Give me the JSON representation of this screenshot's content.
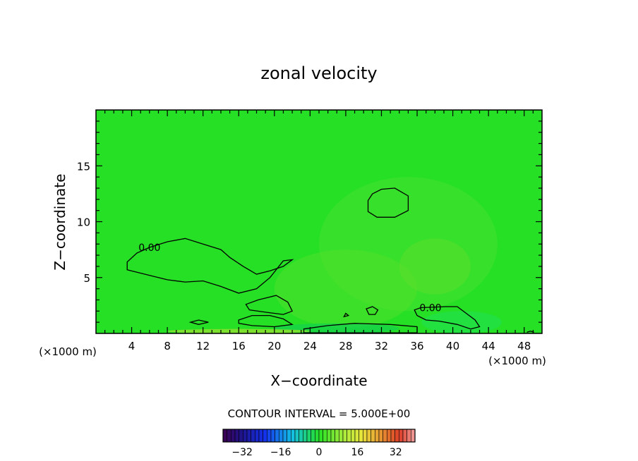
{
  "chart_data": {
    "type": "heatmap",
    "title": "zonal velocity",
    "xlabel": "X−coordinate",
    "ylabel": "Z−coordinate",
    "x_unit_left": "(×1000 m)",
    "x_unit_right": "(×1000 m)",
    "xlim": [
      0,
      50
    ],
    "ylim": [
      0,
      20
    ],
    "x_ticks": [
      4,
      8,
      12,
      16,
      20,
      24,
      28,
      32,
      36,
      40,
      44,
      48
    ],
    "y_ticks": [
      5,
      10,
      15
    ],
    "field_range": [
      -40,
      40
    ],
    "background_value": 0,
    "field_color": "#26e026",
    "contour_interval_text": "CONTOUR INTERVAL = 5.000E+00",
    "contour_labels": [
      {
        "text": "0.00",
        "x": 6.0,
        "z": 7.7
      },
      {
        "text": "0.00",
        "x": 37.5,
        "z": 2.3
      }
    ],
    "colorbar": {
      "ticks": [
        -32,
        -16,
        0,
        16,
        32
      ],
      "tick_labels": [
        "−32",
        "−16",
        "0",
        "16",
        "32"
      ],
      "range": [
        -40,
        40
      ],
      "levels": 48
    }
  }
}
